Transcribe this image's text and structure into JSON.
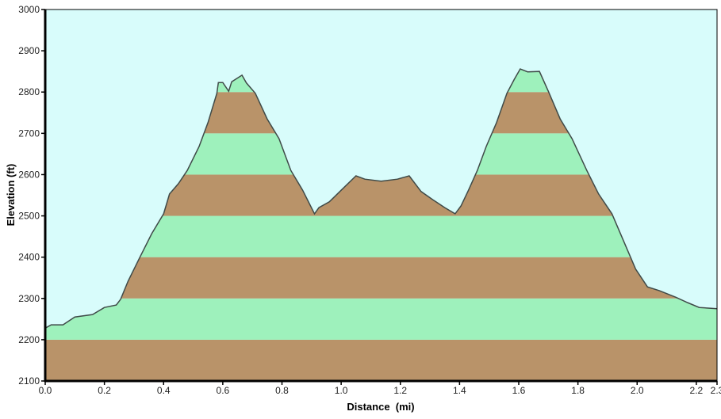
{
  "chart_data": {
    "type": "area",
    "title": "",
    "xlabel": "Distance  (mi)",
    "ylabel": "Elevation (ft)",
    "xlim": [
      0,
      2.27
    ],
    "ylim": [
      2100,
      3000
    ],
    "xticks": [
      "0.0",
      "0.2",
      "0.4",
      "0.6",
      "0.8",
      "1.0",
      "1.2",
      "1.4",
      "1.6",
      "1.8",
      "2.0",
      "2.2",
      "2.3"
    ],
    "xtick_values": [
      0,
      0.2,
      0.4,
      0.6,
      0.8,
      1.0,
      1.2,
      1.4,
      1.6,
      1.8,
      2.0,
      2.2,
      2.27
    ],
    "yticks": [
      "2100",
      "2200",
      "2300",
      "2400",
      "2500",
      "2600",
      "2700",
      "2800",
      "2900",
      "3000"
    ],
    "ytick_values": [
      2100,
      2200,
      2300,
      2400,
      2500,
      2600,
      2700,
      2800,
      2900,
      3000
    ],
    "grid": false,
    "band_interval": 100,
    "colors": {
      "sky": "#d8fcfb",
      "band_brown": "#b99369",
      "band_green": "#9ef1bc",
      "line": "#3f4a48"
    },
    "series": [
      {
        "name": "Elevation",
        "x": [
          0,
          0.02,
          0.06,
          0.1,
          0.16,
          0.2,
          0.24,
          0.255,
          0.28,
          0.32,
          0.36,
          0.4,
          0.42,
          0.45,
          0.48,
          0.52,
          0.55,
          0.58,
          0.585,
          0.6,
          0.62,
          0.63,
          0.665,
          0.68,
          0.71,
          0.75,
          0.79,
          0.83,
          0.87,
          0.91,
          0.925,
          0.96,
          1.0,
          1.05,
          1.08,
          1.135,
          1.19,
          1.23,
          1.27,
          1.31,
          1.35,
          1.385,
          1.405,
          1.43,
          1.46,
          1.49,
          1.525,
          1.56,
          1.585,
          1.605,
          1.63,
          1.67,
          1.7,
          1.74,
          1.78,
          1.83,
          1.87,
          1.915,
          1.955,
          1.995,
          2.035,
          2.075,
          2.13,
          2.17,
          2.21,
          2.27
        ],
        "y": [
          2228,
          2236,
          2236,
          2255,
          2261,
          2278,
          2284,
          2298,
          2342,
          2400,
          2457,
          2505,
          2553,
          2578,
          2610,
          2668,
          2726,
          2797,
          2823,
          2823,
          2802,
          2825,
          2841,
          2822,
          2797,
          2735,
          2687,
          2610,
          2562,
          2505,
          2520,
          2534,
          2562,
          2597,
          2589,
          2584,
          2589,
          2597,
          2559,
          2539,
          2520,
          2505,
          2524,
          2562,
          2610,
          2668,
          2726,
          2797,
          2831,
          2856,
          2849,
          2850,
          2802,
          2735,
          2687,
          2610,
          2553,
          2505,
          2438,
          2371,
          2328,
          2319,
          2303,
          2290,
          2278,
          2275
        ]
      }
    ]
  }
}
